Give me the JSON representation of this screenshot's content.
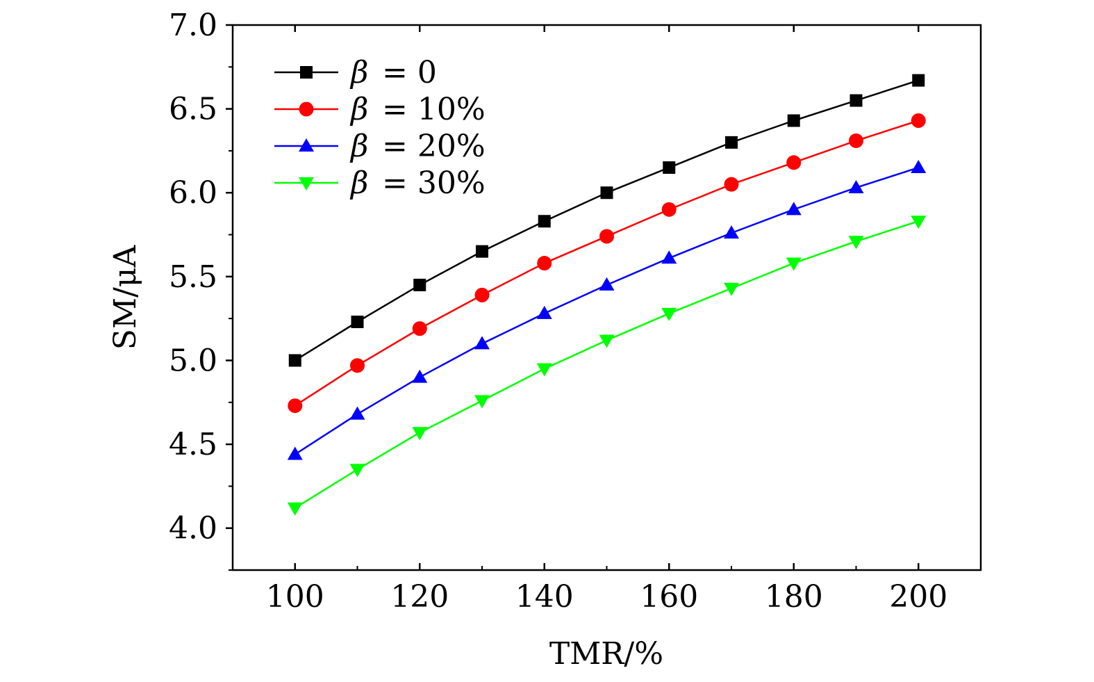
{
  "chart_data": {
    "type": "line",
    "title": "",
    "xlabel": "TMR/%",
    "ylabel": "SM/μA",
    "x": [
      100,
      110,
      120,
      130,
      140,
      150,
      160,
      170,
      180,
      190,
      200
    ],
    "xlim": [
      90,
      210
    ],
    "ylim": [
      3.75,
      7.0
    ],
    "xticks": [
      100,
      120,
      140,
      160,
      180,
      200
    ],
    "xtick_labels": [
      "100",
      "120",
      "140",
      "160",
      "180",
      "200"
    ],
    "yticks": [
      4.0,
      4.5,
      5.0,
      5.5,
      6.0,
      6.5,
      7.0
    ],
    "ytick_labels": [
      "4.0",
      "4.5",
      "5.0",
      "5.5",
      "6.0",
      "6.5",
      "7.0"
    ],
    "grid": false,
    "legend_position": "top-left",
    "series": [
      {
        "name": "β = 0",
        "beta": "β",
        "eq": "= 0",
        "color": "#000000",
        "marker": "square",
        "values": [
          5.0,
          5.23,
          5.45,
          5.65,
          5.83,
          6.0,
          6.15,
          6.3,
          6.43,
          6.55,
          6.67
        ]
      },
      {
        "name": "β = 10%",
        "beta": "β",
        "eq": "= 10%",
        "color": "#ff0000",
        "marker": "circle",
        "values": [
          4.73,
          4.97,
          5.19,
          5.39,
          5.58,
          5.74,
          5.9,
          6.05,
          6.18,
          6.31,
          6.43
        ]
      },
      {
        "name": "β = 20%",
        "beta": "β",
        "eq": "= 20%",
        "color": "#0000ff",
        "marker": "triangle-up",
        "values": [
          4.44,
          4.68,
          4.9,
          5.1,
          5.28,
          5.45,
          5.61,
          5.76,
          5.9,
          6.03,
          6.15
        ]
      },
      {
        "name": "β = 30%",
        "beta": "β",
        "eq": "= 30%",
        "color": "#00ff00",
        "marker": "triangle-down",
        "values": [
          4.12,
          4.35,
          4.57,
          4.76,
          4.95,
          5.12,
          5.28,
          5.43,
          5.58,
          5.71,
          5.83
        ]
      }
    ]
  }
}
